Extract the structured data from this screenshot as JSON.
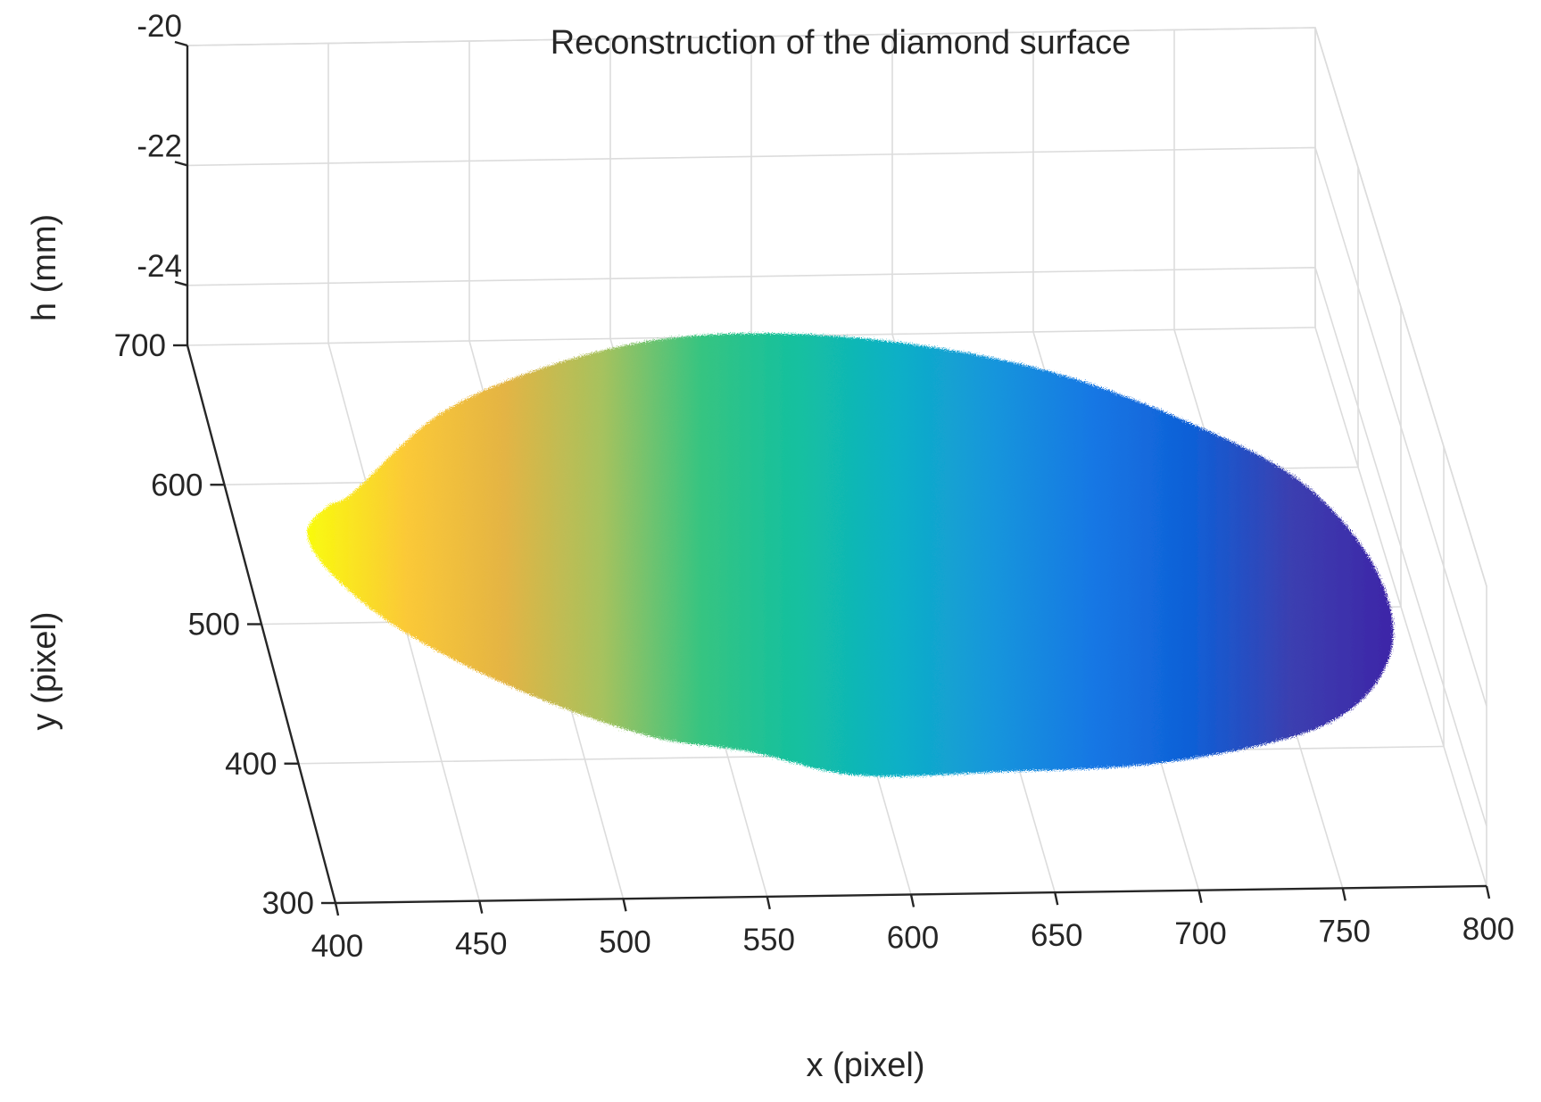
{
  "chart_data": {
    "type": "surface",
    "title": "Reconstruction of the diamond surface",
    "xlabel": "x (pixel)",
    "ylabel": "y (pixel)",
    "zlabel": "h (mm)",
    "xlim": [
      400,
      800
    ],
    "ylim": [
      300,
      700
    ],
    "zlim": [
      -25,
      -20
    ],
    "xticks": [
      "400",
      "450",
      "500",
      "550",
      "600",
      "650",
      "700",
      "750",
      "800"
    ],
    "yticks": [
      "300",
      "400",
      "500",
      "600",
      "700"
    ],
    "zticks": [
      "-24",
      "-22",
      "-20"
    ],
    "grid": true,
    "colormap": "parula",
    "color_low": "#3e26a8",
    "color_high": "#f9fb0e",
    "surface_outline": {
      "x": [
        440,
        480,
        530,
        580,
        640,
        700,
        750,
        780,
        795,
        790,
        760,
        700,
        640,
        590,
        555,
        520,
        480,
        445,
        425,
        420,
        430
      ],
      "y": [
        560,
        620,
        660,
        680,
        680,
        660,
        620,
        580,
        520,
        460,
        410,
        380,
        370,
        365,
        380,
        390,
        420,
        460,
        500,
        530,
        550
      ]
    },
    "height_trend": "h decreases from about -20.5 mm on the left (x≈420) to about -24.5 mm on the right (x≈795)"
  }
}
